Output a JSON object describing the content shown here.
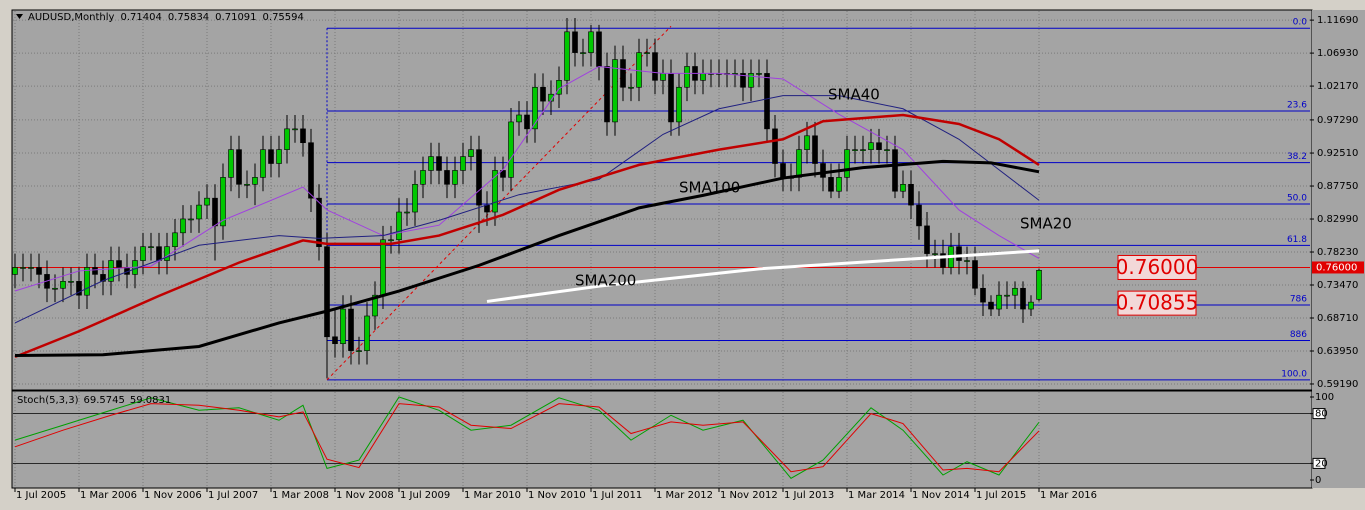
{
  "chart_data": [
    {
      "type": "candlestick",
      "title": "AUDUSD,Monthly",
      "categories": [
        "1 Jul 2005",
        "1 Aug 2005",
        "1 Sep 2005",
        "1 Oct 2005",
        "1 Nov 2005",
        "1 Dec 2005",
        "1 Jan 2006",
        "1 Feb 2006",
        "1 Mar 2006",
        "1 Apr 2006",
        "1 May 2006",
        "1 Jun 2006",
        "1 Jul 2006",
        "1 Aug 2006",
        "1 Sep 2006",
        "1 Oct 2006",
        "1 Nov 2006",
        "1 Dec 2006",
        "1 Jan 2007",
        "1 Feb 2007",
        "1 Mar 2007",
        "1 Apr 2007",
        "1 May 2007",
        "1 Jun 2007",
        "1 Jul 2007",
        "1 Aug 2007",
        "1 Sep 2007",
        "1 Oct 2007",
        "1 Nov 2007",
        "1 Dec 2007",
        "1 Jan 2008",
        "1 Feb 2008",
        "1 Mar 2008",
        "1 Apr 2008",
        "1 May 2008",
        "1 Jun 2008",
        "1 Jul 2008",
        "1 Aug 2008",
        "1 Sep 2008",
        "1 Oct 2008",
        "1 Nov 2008",
        "1 Dec 2008",
        "1 Jan 2009",
        "1 Feb 2009",
        "1 Mar 2009",
        "1 Apr 2009",
        "1 May 2009",
        "1 Jun 2009",
        "1 Jul 2009",
        "1 Aug 2009",
        "1 Sep 2009",
        "1 Oct 2009",
        "1 Nov 2009",
        "1 Dec 2009",
        "1 Jan 2010",
        "1 Feb 2010",
        "1 Mar 2010",
        "1 Apr 2010",
        "1 May 2010",
        "1 Jun 2010",
        "1 Jul 2010",
        "1 Aug 2010",
        "1 Sep 2010",
        "1 Oct 2010",
        "1 Nov 2010",
        "1 Dec 2010",
        "1 Jan 2011",
        "1 Feb 2011",
        "1 Mar 2011",
        "1 Apr 2011",
        "1 May 2011",
        "1 Jun 2011",
        "1 Jul 2011",
        "1 Aug 2011",
        "1 Sep 2011",
        "1 Oct 2011",
        "1 Nov 2011",
        "1 Dec 2011",
        "1 Jan 2012",
        "1 Feb 2012",
        "1 Mar 2012",
        "1 Apr 2012",
        "1 May 2012",
        "1 Jun 2012",
        "1 Jul 2012",
        "1 Aug 2012",
        "1 Sep 2012",
        "1 Oct 2012",
        "1 Nov 2012",
        "1 Dec 2012",
        "1 Jan 2013",
        "1 Feb 2013",
        "1 Mar 2013",
        "1 Apr 2013",
        "1 May 2013",
        "1 Jun 2013",
        "1 Jul 2013",
        "1 Aug 2013",
        "1 Sep 2013",
        "1 Oct 2013",
        "1 Nov 2013",
        "1 Dec 2013",
        "1 Jan 2014",
        "1 Feb 2014",
        "1 Mar 2014",
        "1 Apr 2014",
        "1 May 2014",
        "1 Jun 2014",
        "1 Jul 2014",
        "1 Aug 2014",
        "1 Sep 2014",
        "1 Oct 2014",
        "1 Nov 2014",
        "1 Dec 2014",
        "1 Jan 2015",
        "1 Feb 2015",
        "1 Mar 2015",
        "1 Apr 2015",
        "1 May 2015",
        "1 Jun 2015",
        "1 Jul 2015",
        "1 Aug 2015",
        "1 Sep 2015",
        "1 Oct 2015",
        "1 Nov 2015",
        "1 Dec 2015",
        "1 Jan 2016",
        "1 Feb 2016",
        "1 Mar 2016"
      ],
      "open": [
        0.75,
        0.76,
        0.76,
        0.76,
        0.75,
        0.73,
        0.73,
        0.74,
        0.74,
        0.72,
        0.76,
        0.75,
        0.74,
        0.77,
        0.76,
        0.75,
        0.77,
        0.79,
        0.79,
        0.77,
        0.79,
        0.81,
        0.83,
        0.83,
        0.85,
        0.86,
        0.82,
        0.89,
        0.93,
        0.88,
        0.88,
        0.89,
        0.93,
        0.91,
        0.93,
        0.96,
        0.96,
        0.94,
        0.86,
        0.79,
        0.66,
        0.65,
        0.7,
        0.64,
        0.64,
        0.69,
        0.72,
        0.8,
        0.8,
        0.84,
        0.84,
        0.88,
        0.9,
        0.92,
        0.9,
        0.88,
        0.9,
        0.92,
        0.93,
        0.85,
        0.84,
        0.9,
        0.89,
        0.97,
        0.98,
        0.96,
        1.02,
        1.0,
        1.01,
        1.03,
        1.1,
        1.07,
        1.07,
        1.1,
        1.05,
        0.97,
        1.06,
        1.02,
        1.02,
        1.07,
        1.07,
        1.03,
        1.04,
        0.97,
        1.02,
        1.05,
        1.03,
        1.04,
        1.04,
        1.04,
        1.04,
        1.04,
        1.02,
        1.04,
        1.04,
        0.96,
        0.91,
        0.89,
        0.89,
        0.93,
        0.95,
        0.91,
        0.89,
        0.87,
        0.89,
        0.93,
        0.93,
        0.93,
        0.94,
        0.93,
        0.93,
        0.87,
        0.88,
        0.85,
        0.82,
        0.78,
        0.78,
        0.76,
        0.79,
        0.77,
        0.77,
        0.73,
        0.71,
        0.7,
        0.72,
        0.72,
        0.73,
        0.7,
        0.71404
      ],
      "high": [
        0.78,
        0.78,
        0.78,
        0.78,
        0.77,
        0.75,
        0.76,
        0.76,
        0.76,
        0.78,
        0.78,
        0.77,
        0.79,
        0.79,
        0.78,
        0.79,
        0.81,
        0.81,
        0.81,
        0.81,
        0.83,
        0.85,
        0.85,
        0.87,
        0.88,
        0.88,
        0.91,
        0.95,
        0.95,
        0.9,
        0.91,
        0.95,
        0.95,
        0.95,
        0.98,
        0.98,
        0.98,
        0.96,
        0.88,
        0.81,
        0.7,
        0.72,
        0.72,
        0.66,
        0.71,
        0.74,
        0.82,
        0.82,
        0.86,
        0.86,
        0.9,
        0.92,
        0.94,
        0.94,
        0.92,
        0.92,
        0.94,
        0.95,
        0.95,
        0.87,
        0.92,
        0.92,
        0.99,
        1.0,
        1.0,
        1.04,
        1.04,
        1.03,
        1.05,
        1.12,
        1.12,
        1.09,
        1.11,
        1.11,
        1.07,
        1.08,
        1.08,
        1.04,
        1.09,
        1.09,
        1.09,
        1.06,
        1.06,
        1.04,
        1.07,
        1.07,
        1.06,
        1.06,
        1.06,
        1.06,
        1.06,
        1.06,
        1.06,
        1.06,
        1.06,
        0.98,
        0.93,
        0.91,
        0.95,
        0.97,
        0.97,
        0.93,
        0.91,
        0.91,
        0.95,
        0.95,
        0.95,
        0.96,
        0.96,
        0.95,
        0.95,
        0.9,
        0.9,
        0.87,
        0.84,
        0.8,
        0.8,
        0.81,
        0.81,
        0.79,
        0.79,
        0.75,
        0.72,
        0.74,
        0.74,
        0.74,
        0.74,
        0.72,
        0.75834
      ],
      "low": [
        0.73,
        0.74,
        0.74,
        0.73,
        0.71,
        0.71,
        0.71,
        0.72,
        0.7,
        0.7,
        0.73,
        0.72,
        0.72,
        0.74,
        0.73,
        0.73,
        0.75,
        0.77,
        0.75,
        0.75,
        0.77,
        0.79,
        0.81,
        0.81,
        0.83,
        0.77,
        0.8,
        0.87,
        0.86,
        0.86,
        0.85,
        0.87,
        0.89,
        0.89,
        0.91,
        0.94,
        0.92,
        0.84,
        0.77,
        0.6,
        0.63,
        0.63,
        0.62,
        0.62,
        0.62,
        0.67,
        0.7,
        0.78,
        0.78,
        0.82,
        0.82,
        0.86,
        0.88,
        0.88,
        0.86,
        0.86,
        0.88,
        0.9,
        0.81,
        0.82,
        0.82,
        0.87,
        0.87,
        0.95,
        0.94,
        0.94,
        0.98,
        0.98,
        0.99,
        1.01,
        1.05,
        1.05,
        1.05,
        1.03,
        0.95,
        0.95,
        1.0,
        1.0,
        1.0,
        1.05,
        1.01,
        1.01,
        0.95,
        0.95,
        1.0,
        1.01,
        1.01,
        1.02,
        1.02,
        1.02,
        1.02,
        1.0,
        1.0,
        1.02,
        0.94,
        0.89,
        0.87,
        0.87,
        0.87,
        0.91,
        0.89,
        0.87,
        0.86,
        0.86,
        0.87,
        0.91,
        0.91,
        0.91,
        0.91,
        0.91,
        0.86,
        0.86,
        0.83,
        0.8,
        0.76,
        0.76,
        0.75,
        0.75,
        0.75,
        0.75,
        0.72,
        0.69,
        0.69,
        0.69,
        0.7,
        0.7,
        0.68,
        0.69,
        0.71091
      ],
      "close": [
        0.76,
        0.76,
        0.76,
        0.75,
        0.73,
        0.73,
        0.74,
        0.74,
        0.72,
        0.76,
        0.75,
        0.74,
        0.77,
        0.76,
        0.75,
        0.77,
        0.79,
        0.79,
        0.77,
        0.79,
        0.81,
        0.83,
        0.83,
        0.85,
        0.86,
        0.82,
        0.89,
        0.93,
        0.88,
        0.88,
        0.89,
        0.93,
        0.91,
        0.93,
        0.96,
        0.96,
        0.94,
        0.86,
        0.79,
        0.66,
        0.65,
        0.7,
        0.64,
        0.64,
        0.69,
        0.72,
        0.8,
        0.8,
        0.84,
        0.84,
        0.88,
        0.9,
        0.92,
        0.9,
        0.88,
        0.9,
        0.92,
        0.93,
        0.85,
        0.84,
        0.9,
        0.89,
        0.97,
        0.98,
        0.96,
        1.02,
        1.0,
        1.01,
        1.03,
        1.1,
        1.07,
        1.07,
        1.1,
        1.05,
        0.97,
        1.06,
        1.02,
        1.02,
        1.07,
        1.07,
        1.03,
        1.04,
        0.97,
        1.02,
        1.05,
        1.03,
        1.04,
        1.04,
        1.04,
        1.04,
        1.04,
        1.02,
        1.04,
        1.04,
        0.96,
        0.91,
        0.89,
        0.89,
        0.93,
        0.95,
        0.91,
        0.89,
        0.87,
        0.89,
        0.93,
        0.93,
        0.93,
        0.94,
        0.93,
        0.93,
        0.87,
        0.88,
        0.85,
        0.82,
        0.78,
        0.78,
        0.76,
        0.79,
        0.77,
        0.77,
        0.73,
        0.71,
        0.7,
        0.72,
        0.72,
        0.73,
        0.7,
        0.71,
        0.75594
      ],
      "up_color": "#00c800",
      "down_color": "#000000",
      "ylim": [
        0.5861,
        1.1286
      ],
      "yticks": [
        {
          "value": 1.1169,
          "label": "1.11690"
        },
        {
          "value": 1.0693,
          "label": "1.06930"
        },
        {
          "value": 1.0217,
          "label": "1.02170"
        },
        {
          "value": 0.9729,
          "label": "0.97290"
        },
        {
          "value": 0.9251,
          "label": "0.92510"
        },
        {
          "value": 0.8775,
          "label": "0.87750"
        },
        {
          "value": 0.8299,
          "label": "0.82990"
        },
        {
          "value": 0.7823,
          "label": "0.78230"
        },
        {
          "value": 0.7347,
          "label": "0.73470"
        },
        {
          "value": 0.6871,
          "label": "0.68710"
        },
        {
          "value": 0.6395,
          "label": "0.63950"
        },
        {
          "value": 0.5919,
          "label": "0.59190"
        }
      ],
      "xticks": [
        "1 Jul 2005",
        "1 Mar 2006",
        "1 Nov 2006",
        "1 Jul 2007",
        "1 Mar 2008",
        "1 Nov 2008",
        "1 Jul 2009",
        "1 Mar 2010",
        "1 Nov 2010",
        "1 Jul 2011",
        "1 Mar 2012",
        "1 Nov 2012",
        "1 Jul 2013",
        "1 Mar 2014",
        "1 Nov 2014",
        "1 Jul 2015",
        "1 Mar 2016"
      ],
      "grid": true,
      "series": [
        {
          "name": "SMA20",
          "color": "#a040e0",
          "line_width": 1,
          "x": [
            "1 Jul 2005",
            "1 Mar 2006",
            "1 Dec 2006",
            "1 Sep 2007",
            "1 Jul 2008",
            "1 Oct 2008",
            "1 May 2009",
            "1 Dec 2009",
            "1 Aug 2010",
            "1 Mar 2011",
            "1 Aug 2011",
            "1 Apr 2012",
            "1 Nov 2012",
            "1 Jul 2013",
            "1 Feb 2014",
            "1 Oct 2014",
            "1 May 2015",
            "1 Oct 2015",
            "1 Mar 2016"
          ],
          "values": [
            0.726,
            0.755,
            0.762,
            0.828,
            0.876,
            0.843,
            0.806,
            0.821,
            0.901,
            1.018,
            1.05,
            1.04,
            1.04,
            1.032,
            0.981,
            0.93,
            0.843,
            0.806,
            0.773
          ]
        },
        {
          "name": "SMA40",
          "color": "#202080",
          "line_width": 1,
          "x": [
            "1 Jul 2005",
            "1 Jun 2006",
            "1 Jun 2007",
            "1 Apr 2008",
            "1 Sep 2008",
            "1 May 2009",
            "1 Dec 2009",
            "1 Oct 2010",
            "1 Aug 2011",
            "1 Apr 2012",
            "1 Nov 2012",
            "1 Jul 2013",
            "1 Feb 2014",
            "1 Oct 2014",
            "1 May 2015",
            "1 Oct 2015",
            "1 Mar 2016"
          ],
          "values": [
            0.68,
            0.741,
            0.792,
            0.806,
            0.802,
            0.806,
            0.828,
            0.865,
            0.887,
            0.952,
            0.989,
            1.008,
            1.008,
            0.989,
            0.945,
            0.901,
            0.857
          ]
        },
        {
          "color": "#c00000",
          "line_width": 2.5,
          "x": [
            "1 Jul 2005",
            "1 Mar 2006",
            "1 Jan 2007",
            "1 Nov 2007",
            "1 Jul 2008",
            "1 Oct 2008",
            "1 Jun 2009",
            "1 Dec 2009",
            "1 Aug 2010",
            "1 Mar 2011",
            "1 Jan 2012",
            "1 Nov 2012",
            "1 Jul 2013",
            "1 Dec 2013",
            "1 Oct 2014",
            "1 May 2015",
            "1 Oct 2015",
            "1 Mar 2016"
          ],
          "values": [
            0.631,
            0.668,
            0.719,
            0.767,
            0.799,
            0.794,
            0.794,
            0.806,
            0.836,
            0.872,
            0.908,
            0.93,
            0.945,
            0.971,
            0.98,
            0.967,
            0.945,
            0.908
          ]
        },
        {
          "name": "SMA100",
          "color": "#000000",
          "line_width": 3,
          "x": [
            "1 Jul 2005",
            "1 Jun 2006",
            "1 Jun 2007",
            "1 Apr 2008",
            "1 Oct 2008",
            "1 Jul 2009",
            "1 May 2010",
            "1 Mar 2011",
            "1 Jan 2012",
            "1 Sep 2012",
            "1 Jul 2013",
            "1 May 2014",
            "1 Mar 2015",
            "1 Sep 2015",
            "1 Mar 2016"
          ],
          "values": [
            0.633,
            0.634,
            0.646,
            0.68,
            0.697,
            0.726,
            0.763,
            0.806,
            0.846,
            0.864,
            0.889,
            0.904,
            0.913,
            0.911,
            0.898
          ]
        },
        {
          "name": "SMA200",
          "color": "#ffffff",
          "line_width": 3,
          "x": [
            "1 Jun 2010",
            "1 Aug 2011",
            "1 Apr 2013",
            "1 Dec 2014",
            "1 Mar 2016"
          ],
          "values": [
            0.711,
            0.733,
            0.758,
            0.773,
            0.784
          ]
        }
      ],
      "fibonacci": {
        "color": "#0000c8",
        "start": "1 Oct 2008",
        "levels": [
          {
            "label": "0.0",
            "value": 1.1052
          },
          {
            "label": "23.6",
            "value": 0.9857
          },
          {
            "label": "38.2",
            "value": 0.9113
          },
          {
            "label": "50.0",
            "value": 0.8516
          },
          {
            "label": "61.8",
            "value": 0.7918
          },
          {
            "label": "786",
            "value": 0.7058
          },
          {
            "label": "886",
            "value": 0.6547
          },
          {
            "label": "100.0",
            "value": 0.5978
          }
        ]
      },
      "trendline": {
        "color": "#e00000",
        "x": [
          "1 Oct 2008",
          "1 May 2012"
        ],
        "values": [
          0.5978,
          1.108
        ]
      },
      "price_lines": [
        {
          "label": "0.76000",
          "value": 0.76,
          "show_line": true
        },
        {
          "label": "0.70855",
          "value": 0.70855,
          "show_line": false
        }
      ]
    },
    {
      "type": "line",
      "title": "Stoch(5,3,3)",
      "ylim": [
        0,
        100
      ],
      "yticks": [
        0,
        20,
        80,
        100
      ],
      "levels": [
        20,
        80
      ],
      "series": [
        {
          "color": "#00a000",
          "x": [
            "1 Jul 2005",
            "1 Jan 2006",
            "1 Jul 2006",
            "1 Dec 2006",
            "1 Jun 2007",
            "1 Nov 2007",
            "1 Apr 2008",
            "1 Jul 2008",
            "1 Oct 2008",
            "1 Feb 2009",
            "1 Jul 2009",
            "1 Dec 2009",
            "1 Apr 2010",
            "1 Sep 2010",
            "1 Mar 2011",
            "1 Aug 2011",
            "1 Dec 2011",
            "1 May 2012",
            "1 Sep 2012",
            "1 Feb 2013",
            "1 Aug 2013",
            "1 Dec 2013",
            "1 Jun 2014",
            "1 Oct 2014",
            "1 Mar 2015",
            "1 Jun 2015",
            "1 Oct 2015",
            "1 Mar 2016"
          ],
          "values": [
            48,
            66,
            84,
            99,
            84,
            87,
            72,
            90,
            14,
            24,
            100,
            84,
            60,
            66,
            99,
            84,
            48,
            78,
            60,
            72,
            2,
            24,
            87,
            60,
            6,
            22,
            6,
            69.5745
          ]
        },
        {
          "color": "#e00000",
          "x": [
            "1 Jul 2005",
            "1 Jan 2006",
            "1 Jul 2006",
            "1 Dec 2006",
            "1 Jun 2007",
            "1 Nov 2007",
            "1 Apr 2008",
            "1 Jul 2008",
            "1 Oct 2008",
            "1 Feb 2009",
            "1 Jul 2009",
            "1 Dec 2009",
            "1 Apr 2010",
            "1 Sep 2010",
            "1 Mar 2011",
            "1 Aug 2011",
            "1 Dec 2011",
            "1 May 2012",
            "1 Sep 2012",
            "1 Feb 2013",
            "1 Aug 2013",
            "1 Dec 2013",
            "1 Jun 2014",
            "1 Oct 2014",
            "1 Mar 2015",
            "1 Jun 2015",
            "1 Oct 2015",
            "1 Mar 2016"
          ],
          "values": [
            40,
            60,
            78,
            92,
            90,
            84,
            76,
            82,
            25,
            15,
            92,
            88,
            66,
            62,
            92,
            88,
            56,
            70,
            66,
            70,
            10,
            16,
            80,
            68,
            12,
            14,
            10,
            59.0831
          ]
        }
      ]
    }
  ]
}
